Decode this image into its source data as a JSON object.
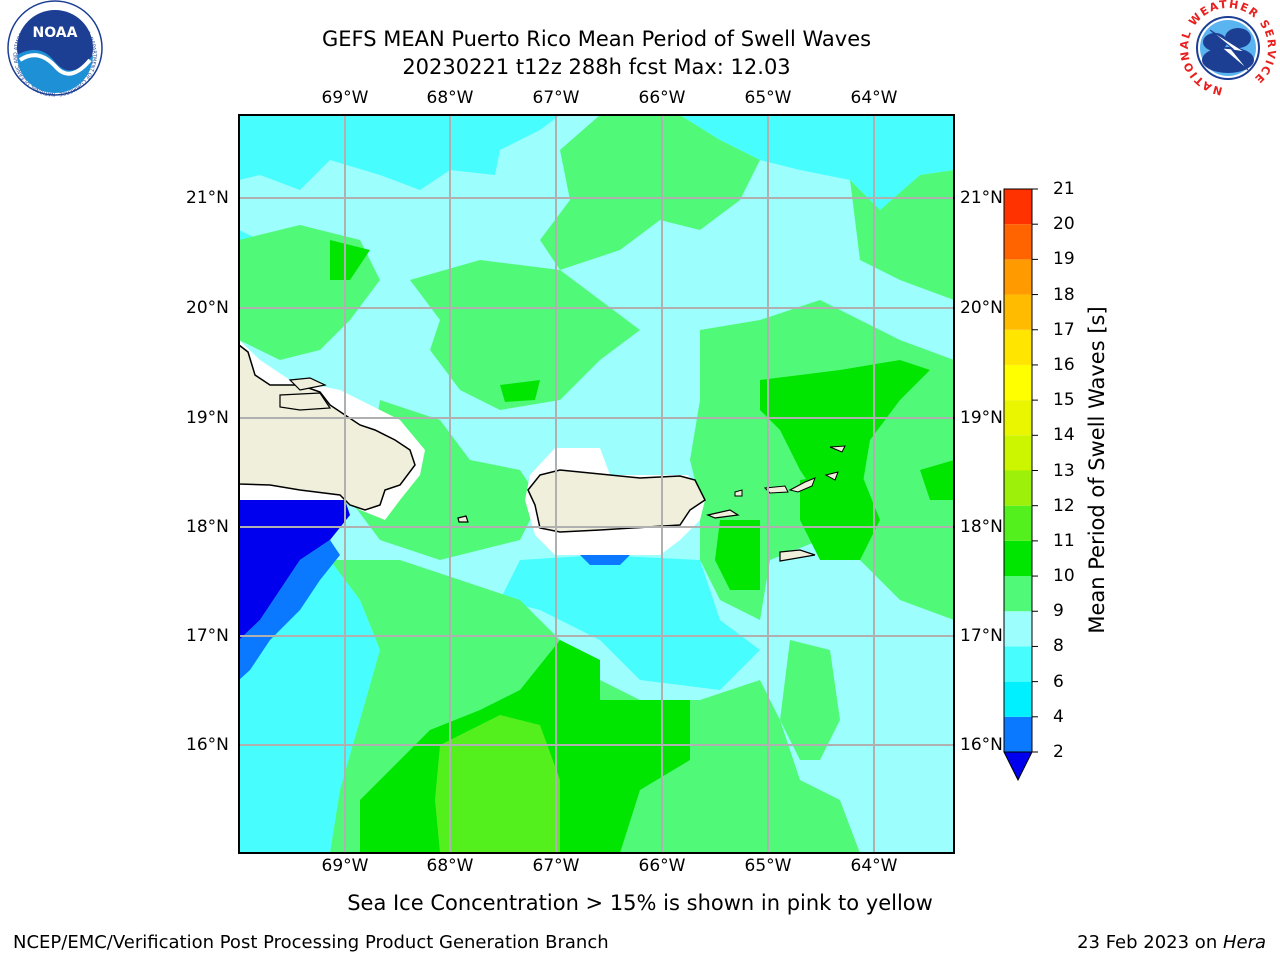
{
  "header": {
    "title_line1": "GEFS MEAN Puerto Rico Mean Period of Swell Waves",
    "title_line2": "20230221 t12z 288h fcst   Max: 12.03"
  },
  "logos": {
    "noaa": {
      "text": "NOAA",
      "ring_text": "NATIONAL OCEANIC AND ATMOSPHERIC ADMINISTRATION · U.S. DEPARTMENT OF COMMERCE ·"
    },
    "nws": {
      "ring_text": "NATIONAL WEATHER SERVICE"
    }
  },
  "map": {
    "lon_labels": [
      "69°W",
      "68°W",
      "67°W",
      "66°W",
      "65°W",
      "64°W"
    ],
    "lat_labels": [
      "21°N",
      "20°N",
      "19°N",
      "18°N",
      "17°N",
      "16°N"
    ]
  },
  "colorbar": {
    "label": "Mean Period of Swell Waves [s]",
    "ticks": [
      "2",
      "4",
      "6",
      "8",
      "9",
      "10",
      "11",
      "12",
      "13",
      "14",
      "15",
      "16",
      "17",
      "18",
      "19",
      "20",
      "21"
    ],
    "colors": [
      "#0a78ff",
      "#00f0ff",
      "#47fdfd",
      "#9dfefe",
      "#50fa78",
      "#00e600",
      "#53f01e",
      "#9cf00a",
      "#ccf500",
      "#eaf500",
      "#ffff00",
      "#ffe500",
      "#ffbb00",
      "#ff9a00",
      "#ff6400",
      "#ff3200"
    ],
    "under_color": "#0000ee"
  },
  "footer": {
    "note": "Sea Ice Concentration > 15% is shown in pink to yellow",
    "left": "NCEP/EMC/Verification Post Processing Product Generation Branch",
    "right_date": "23 Feb 2023 on ",
    "right_host": "Hera"
  }
}
